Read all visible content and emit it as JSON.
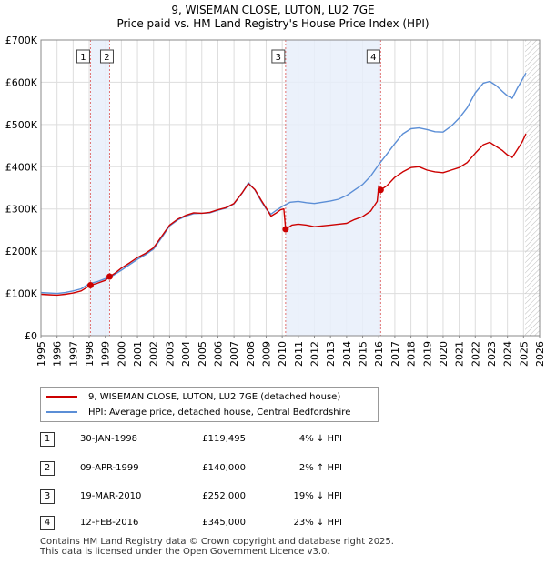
{
  "chart_data": {
    "type": "line",
    "title": "9, WISEMAN CLOSE, LUTON, LU2 7GE",
    "subtitle": "Price paid vs. HM Land Registry's House Price Index (HPI)",
    "ylim": [
      0,
      700000
    ],
    "y_ticks": [
      {
        "value": 0,
        "label": "£0"
      },
      {
        "value": 100000,
        "label": "£100K"
      },
      {
        "value": 200000,
        "label": "£200K"
      },
      {
        "value": 300000,
        "label": "£300K"
      },
      {
        "value": 400000,
        "label": "£400K"
      },
      {
        "value": 500000,
        "label": "£500K"
      },
      {
        "value": 600000,
        "label": "£600K"
      },
      {
        "value": 700000,
        "label": "£700K"
      }
    ],
    "xlim": [
      1995,
      2026
    ],
    "x_ticks": [
      "1995",
      "1996",
      "1997",
      "1998",
      "1999",
      "2000",
      "2001",
      "2002",
      "2003",
      "2004",
      "2005",
      "2006",
      "2007",
      "2008",
      "2009",
      "2010",
      "2011",
      "2012",
      "2013",
      "2014",
      "2015",
      "2016",
      "2017",
      "2018",
      "2019",
      "2020",
      "2021",
      "2022",
      "2023",
      "2024",
      "2025",
      "2026"
    ],
    "series": [
      {
        "name": "9, WISEMAN CLOSE, LUTON, LU2 7GE (detached house)",
        "color": "#cc0000",
        "points": [
          [
            1995.0,
            98000
          ],
          [
            1995.5,
            97000
          ],
          [
            1996.0,
            96000
          ],
          [
            1996.5,
            98000
          ],
          [
            1997.0,
            101000
          ],
          [
            1997.5,
            106000
          ],
          [
            1998.08,
            119495
          ],
          [
            1998.5,
            124000
          ],
          [
            1999.0,
            131000
          ],
          [
            1999.27,
            140000
          ],
          [
            1999.6,
            148000
          ],
          [
            2000.0,
            160000
          ],
          [
            2000.5,
            172000
          ],
          [
            2001.0,
            185000
          ],
          [
            2001.5,
            195000
          ],
          [
            2002.0,
            208000
          ],
          [
            2002.5,
            235000
          ],
          [
            2003.0,
            262000
          ],
          [
            2003.5,
            276000
          ],
          [
            2004.0,
            285000
          ],
          [
            2004.5,
            291000
          ],
          [
            2005.0,
            290000
          ],
          [
            2005.5,
            292000
          ],
          [
            2006.0,
            298000
          ],
          [
            2006.5,
            303000
          ],
          [
            2007.0,
            313000
          ],
          [
            2007.5,
            338000
          ],
          [
            2007.9,
            360000
          ],
          [
            2008.3,
            346000
          ],
          [
            2008.7,
            320000
          ],
          [
            2009.0,
            302000
          ],
          [
            2009.3,
            283000
          ],
          [
            2009.6,
            290000
          ],
          [
            2009.9,
            298000
          ],
          [
            2010.1,
            300000
          ],
          [
            2010.21,
            252000
          ],
          [
            2010.6,
            262000
          ],
          [
            2011.0,
            264000
          ],
          [
            2011.5,
            262000
          ],
          [
            2012.0,
            258000
          ],
          [
            2012.5,
            260000
          ],
          [
            2013.0,
            262000
          ],
          [
            2013.5,
            264000
          ],
          [
            2014.0,
            266000
          ],
          [
            2014.5,
            275000
          ],
          [
            2015.0,
            282000
          ],
          [
            2015.5,
            295000
          ],
          [
            2015.9,
            318000
          ],
          [
            2016.0,
            355000
          ],
          [
            2016.12,
            345000
          ],
          [
            2016.5,
            355000
          ],
          [
            2017.0,
            375000
          ],
          [
            2017.5,
            388000
          ],
          [
            2018.0,
            398000
          ],
          [
            2018.5,
            400000
          ],
          [
            2019.0,
            392000
          ],
          [
            2019.5,
            388000
          ],
          [
            2020.0,
            386000
          ],
          [
            2020.5,
            392000
          ],
          [
            2021.0,
            398000
          ],
          [
            2021.5,
            410000
          ],
          [
            2022.0,
            432000
          ],
          [
            2022.5,
            452000
          ],
          [
            2022.9,
            458000
          ],
          [
            2023.3,
            448000
          ],
          [
            2023.7,
            438000
          ],
          [
            2024.0,
            428000
          ],
          [
            2024.3,
            422000
          ],
          [
            2024.6,
            440000
          ],
          [
            2024.9,
            458000
          ],
          [
            2025.15,
            478000
          ]
        ]
      },
      {
        "name": "HPI: Average price, detached house, Central Bedfordshire",
        "color": "#5b8ed6",
        "points": [
          [
            1995.0,
            102000
          ],
          [
            1995.5,
            101000
          ],
          [
            1996.0,
            100000
          ],
          [
            1996.5,
            102000
          ],
          [
            1997.0,
            106000
          ],
          [
            1997.5,
            111000
          ],
          [
            1998.0,
            123000
          ],
          [
            1998.5,
            128000
          ],
          [
            1999.0,
            135000
          ],
          [
            1999.5,
            143000
          ],
          [
            2000.0,
            155000
          ],
          [
            2000.5,
            168000
          ],
          [
            2001.0,
            181000
          ],
          [
            2001.5,
            192000
          ],
          [
            2002.0,
            205000
          ],
          [
            2002.5,
            232000
          ],
          [
            2003.0,
            260000
          ],
          [
            2003.5,
            274000
          ],
          [
            2004.0,
            283000
          ],
          [
            2004.5,
            289000
          ],
          [
            2005.0,
            290000
          ],
          [
            2005.5,
            291000
          ],
          [
            2006.0,
            297000
          ],
          [
            2006.5,
            302000
          ],
          [
            2007.0,
            312000
          ],
          [
            2007.5,
            337000
          ],
          [
            2007.9,
            362000
          ],
          [
            2008.3,
            345000
          ],
          [
            2008.7,
            318000
          ],
          [
            2009.0,
            300000
          ],
          [
            2009.3,
            288000
          ],
          [
            2009.6,
            296000
          ],
          [
            2010.0,
            306000
          ],
          [
            2010.5,
            316000
          ],
          [
            2011.0,
            318000
          ],
          [
            2011.5,
            315000
          ],
          [
            2012.0,
            313000
          ],
          [
            2012.5,
            316000
          ],
          [
            2013.0,
            319000
          ],
          [
            2013.5,
            323000
          ],
          [
            2014.0,
            332000
          ],
          [
            2014.5,
            345000
          ],
          [
            2015.0,
            358000
          ],
          [
            2015.5,
            378000
          ],
          [
            2016.0,
            405000
          ],
          [
            2016.5,
            430000
          ],
          [
            2017.0,
            455000
          ],
          [
            2017.5,
            478000
          ],
          [
            2018.0,
            490000
          ],
          [
            2018.5,
            492000
          ],
          [
            2019.0,
            488000
          ],
          [
            2019.5,
            483000
          ],
          [
            2020.0,
            482000
          ],
          [
            2020.5,
            496000
          ],
          [
            2021.0,
            515000
          ],
          [
            2021.5,
            540000
          ],
          [
            2022.0,
            575000
          ],
          [
            2022.5,
            598000
          ],
          [
            2022.9,
            602000
          ],
          [
            2023.3,
            592000
          ],
          [
            2023.7,
            578000
          ],
          [
            2024.0,
            568000
          ],
          [
            2024.3,
            562000
          ],
          [
            2024.6,
            585000
          ],
          [
            2024.9,
            605000
          ],
          [
            2025.15,
            622000
          ]
        ]
      }
    ],
    "sales": [
      {
        "label": "1",
        "x": 1998.08,
        "price": 119495
      },
      {
        "label": "2",
        "x": 1999.27,
        "price": 140000
      },
      {
        "label": "3",
        "x": 2010.21,
        "price": 252000
      },
      {
        "label": "4",
        "x": 2016.12,
        "price": 345000
      }
    ],
    "shaded_spans": [
      [
        1998.08,
        1999.27
      ],
      [
        2010.21,
        2016.12
      ]
    ],
    "forecast_hatch_from": 2025.1
  },
  "legend": {
    "property": "9, WISEMAN CLOSE, LUTON, LU2 7GE (detached house)",
    "hpi": "HPI: Average price, detached house, Central Bedfordshire"
  },
  "sales_table": [
    {
      "num": "1",
      "date": "30-JAN-1998",
      "price": "£119,495",
      "hpi": "4% ↓ HPI"
    },
    {
      "num": "2",
      "date": "09-APR-1999",
      "price": "£140,000",
      "hpi": "2% ↑ HPI"
    },
    {
      "num": "3",
      "date": "19-MAR-2010",
      "price": "£252,000",
      "hpi": "19% ↓ HPI"
    },
    {
      "num": "4",
      "date": "12-FEB-2016",
      "price": "£345,000",
      "hpi": "23% ↓ HPI"
    }
  ],
  "footer": {
    "line1": "Contains HM Land Registry data © Crown copyright and database right 2025.",
    "line2": "This data is licensed under the Open Government Licence v3.0."
  }
}
